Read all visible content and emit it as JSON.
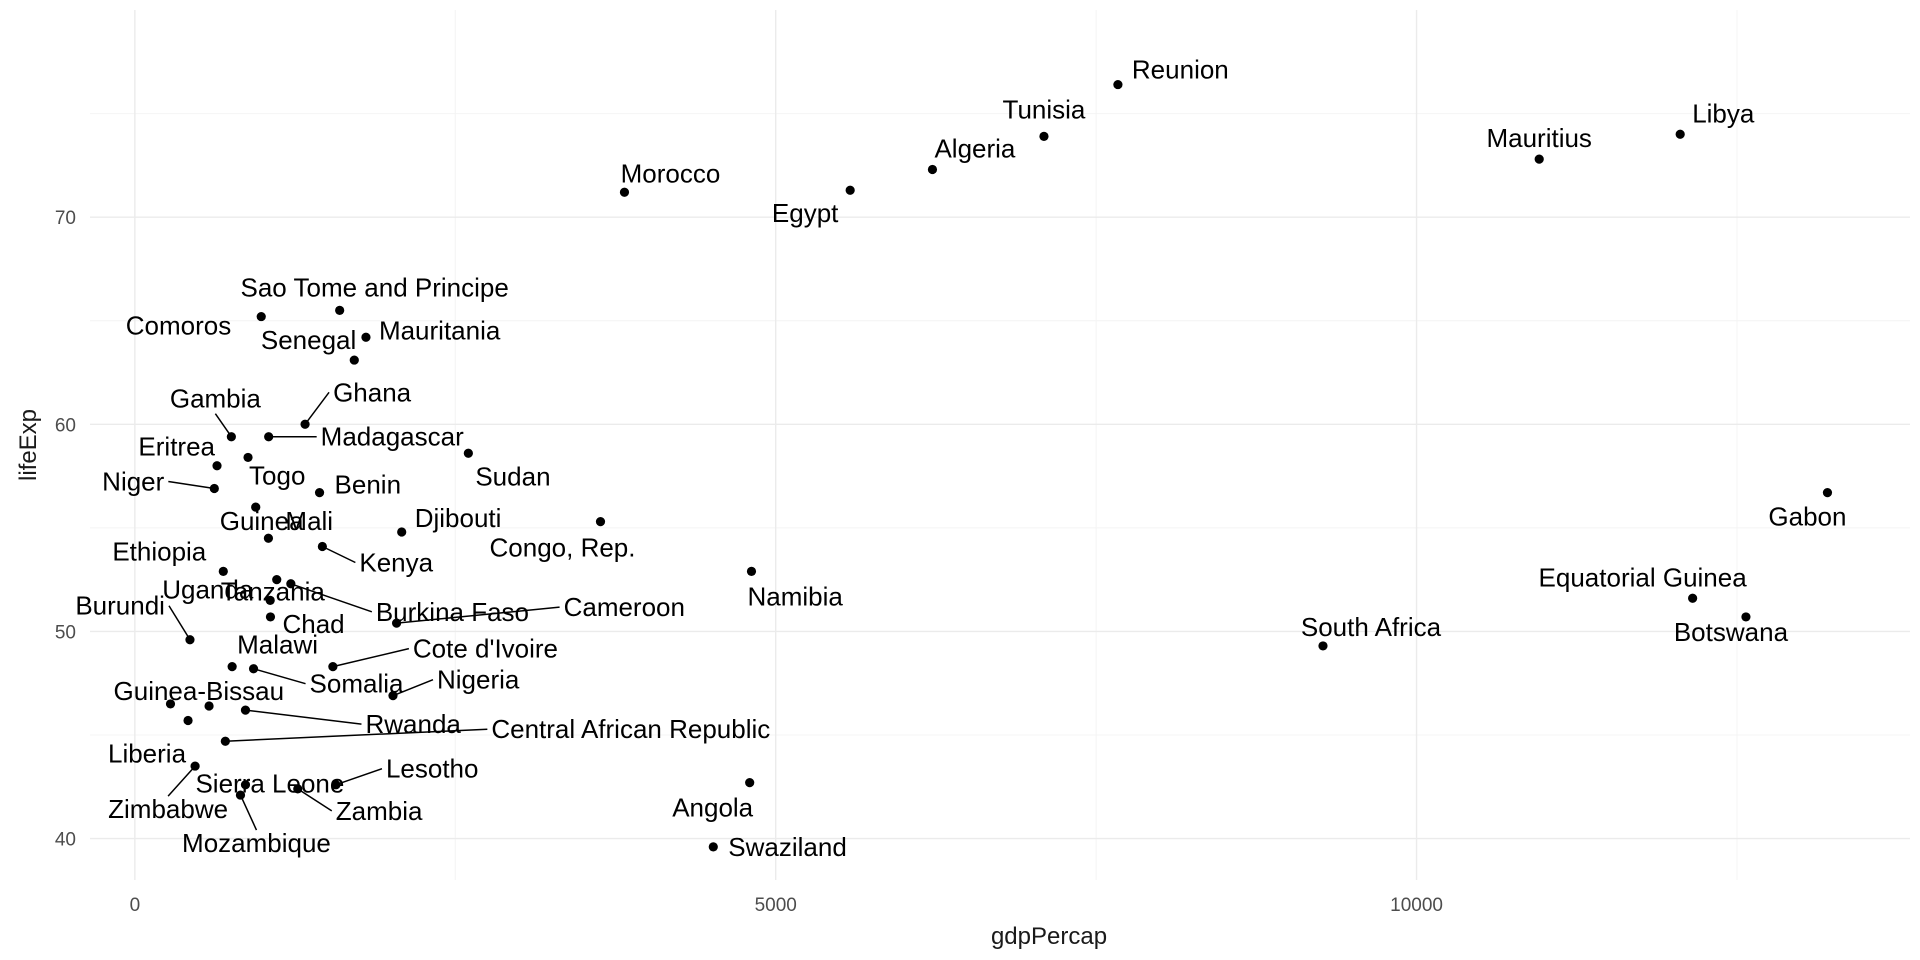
{
  "chart_data": {
    "type": "scatter",
    "title": "",
    "xlabel": "gdpPercap",
    "ylabel": "lifeExp",
    "xlim": [
      -350,
      13850
    ],
    "ylim": [
      38,
      80
    ],
    "xticks": [
      0,
      5000,
      10000
    ],
    "yticks": [
      40,
      50,
      60,
      70
    ],
    "x_tick_labels": [
      "0",
      "5000",
      "10000"
    ],
    "y_tick_labels": [
      "40",
      "50",
      "60",
      "70"
    ],
    "grid": true,
    "legend": "none",
    "points": [
      {
        "name": "Reunion",
        "x": 7670,
        "y": 76.4
      },
      {
        "name": "Tunisia",
        "x": 7093,
        "y": 73.9
      },
      {
        "name": "Libya",
        "x": 12057,
        "y": 74.0
      },
      {
        "name": "Mauritius",
        "x": 10957,
        "y": 72.8
      },
      {
        "name": "Algeria",
        "x": 6223,
        "y": 72.3
      },
      {
        "name": "Morocco",
        "x": 3820,
        "y": 71.2
      },
      {
        "name": "Egypt",
        "x": 5581,
        "y": 71.3
      },
      {
        "name": "Sao Tome and Principe",
        "x": 1598,
        "y": 65.5
      },
      {
        "name": "Comoros",
        "x": 986,
        "y": 65.2
      },
      {
        "name": "Mauritania",
        "x": 1803,
        "y": 64.2
      },
      {
        "name": "Senegal",
        "x": 1712,
        "y": 63.1
      },
      {
        "name": "Gambia",
        "x": 753,
        "y": 59.4
      },
      {
        "name": "Ghana",
        "x": 1328,
        "y": 60.0
      },
      {
        "name": "Madagascar",
        "x": 1044,
        "y": 59.4
      },
      {
        "name": "Eritrea",
        "x": 641,
        "y": 58.0
      },
      {
        "name": "Togo",
        "x": 883,
        "y": 58.4
      },
      {
        "name": "Sudan",
        "x": 2602,
        "y": 58.6
      },
      {
        "name": "Niger",
        "x": 620,
        "y": 56.9
      },
      {
        "name": "Benin",
        "x": 1441,
        "y": 56.7
      },
      {
        "name": "Guinea",
        "x": 943,
        "y": 56.0
      },
      {
        "name": "Gabon",
        "x": 13206,
        "y": 56.7
      },
      {
        "name": "Mali",
        "x": 1042,
        "y": 54.5
      },
      {
        "name": "Djibouti",
        "x": 2082,
        "y": 54.8
      },
      {
        "name": "Congo, Rep.",
        "x": 3633,
        "y": 55.3
      },
      {
        "name": "Kenya",
        "x": 1463,
        "y": 54.1
      },
      {
        "name": "Ethiopia",
        "x": 690,
        "y": 52.9
      },
      {
        "name": "Tanzania",
        "x": 1107,
        "y": 52.5
      },
      {
        "name": "Namibia",
        "x": 4811,
        "y": 52.9
      },
      {
        "name": "Burkina Faso",
        "x": 1217,
        "y": 52.3
      },
      {
        "name": "Chad",
        "x": 1058,
        "y": 50.7
      },
      {
        "name": "Cameroon",
        "x": 2042,
        "y": 50.4
      },
      {
        "name": "Burundi",
        "x": 430,
        "y": 49.6
      },
      {
        "name": "Uganda",
        "x": 1056,
        "y": 51.5
      },
      {
        "name": "Equatorial Guinea",
        "x": 12154,
        "y": 51.6
      },
      {
        "name": "South Africa",
        "x": 9270,
        "y": 49.3
      },
      {
        "name": "Botswana",
        "x": 12570,
        "y": 50.7
      },
      {
        "name": "Malawi",
        "x": 759,
        "y": 48.3
      },
      {
        "name": "Cote d'Ivoire",
        "x": 1545,
        "y": 48.3
      },
      {
        "name": "Somalia",
        "x": 926,
        "y": 48.2
      },
      {
        "name": "Nigeria",
        "x": 2014,
        "y": 46.9
      },
      {
        "name": "Guinea-Bissau",
        "x": 579,
        "y": 46.4
      },
      {
        "name": "Rwanda",
        "x": 863,
        "y": 46.2
      },
      {
        "name": "Central African Republic",
        "x": 706,
        "y": 44.7
      },
      {
        "name": "Liberia",
        "x": 415,
        "y": 45.7
      },
      {
        "name": "Sierra Leone",
        "x": 863,
        "y": 42.6
      },
      {
        "name": "Lesotho",
        "x": 1569,
        "y": 42.6
      },
      {
        "name": "Zimbabwe",
        "x": 470,
        "y": 43.5
      },
      {
        "name": "Zambia",
        "x": 1271,
        "y": 42.4
      },
      {
        "name": "Mozambique",
        "x": 824,
        "y": 42.1
      },
      {
        "name": "Angola",
        "x": 4797,
        "y": 42.7
      },
      {
        "name": "Swaziland",
        "x": 4513,
        "y": 39.6
      },
      {
        "name": "",
        "x": 278,
        "y": 46.5
      }
    ]
  }
}
